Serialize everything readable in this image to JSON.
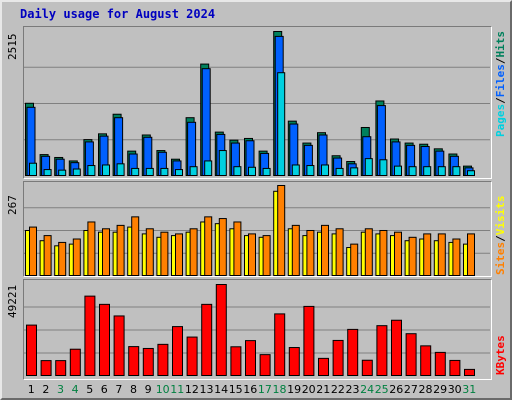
{
  "title": "Daily usage for August 2024",
  "colors": {
    "pages": "#00d0e0",
    "files": "#0060ff",
    "hits": "#00805c",
    "sites": "#ff8000",
    "visits": "#ffff00",
    "kbytes": "#ff0000",
    "weekend_label": "#008040",
    "weekday_label": "#000000",
    "title": "#0000c0"
  },
  "right_labels": {
    "top": [
      "Pages",
      "Files",
      "Hits"
    ],
    "middle": [
      "Sites",
      "Visits"
    ],
    "bottom": [
      "KBytes"
    ]
  },
  "separator": "/",
  "chart_data": [
    {
      "type": "bar",
      "title": "Daily usage for August 2024",
      "categories": [
        "1",
        "2",
        "3",
        "4",
        "5",
        "6",
        "7",
        "8",
        "9",
        "10",
        "11",
        "12",
        "13",
        "14",
        "15",
        "16",
        "17",
        "18",
        "19",
        "20",
        "21",
        "22",
        "23",
        "24",
        "25",
        "26",
        "27",
        "28",
        "29",
        "30",
        "31"
      ],
      "weekend_days": [
        "3",
        "4",
        "10",
        "11",
        "17",
        "18",
        "24",
        "25",
        "31"
      ],
      "ymax_label": "2515",
      "ylim": [
        0,
        2515
      ],
      "series": [
        {
          "name": "Hits",
          "values": [
            1270,
            380,
            330,
            270,
            640,
            740,
            1080,
            440,
            720,
            450,
            300,
            1020,
            1950,
            770,
            630,
            660,
            440,
            2515,
            960,
            580,
            760,
            360,
            260,
            850,
            1310,
            650,
            580,
            560,
            480,
            390,
            180
          ]
        },
        {
          "name": "Files",
          "values": [
            1200,
            350,
            300,
            240,
            600,
            700,
            1020,
            390,
            680,
            420,
            270,
            940,
            1870,
            730,
            580,
            620,
            400,
            2430,
            910,
            540,
            720,
            320,
            220,
            690,
            1230,
            600,
            540,
            520,
            440,
            350,
            150
          ]
        },
        {
          "name": "Pages",
          "values": [
            230,
            120,
            110,
            130,
            190,
            200,
            220,
            140,
            140,
            140,
            120,
            170,
            270,
            450,
            170,
            160,
            140,
            1800,
            200,
            190,
            200,
            140,
            150,
            310,
            290,
            180,
            170,
            170,
            170,
            170,
            100
          ]
        }
      ]
    },
    {
      "type": "bar",
      "categories": [
        "1",
        "2",
        "3",
        "4",
        "5",
        "6",
        "7",
        "8",
        "9",
        "10",
        "11",
        "12",
        "13",
        "14",
        "15",
        "16",
        "17",
        "18",
        "19",
        "20",
        "21",
        "22",
        "23",
        "24",
        "25",
        "26",
        "27",
        "28",
        "29",
        "30",
        "31"
      ],
      "ymax_label": "267",
      "ylim": [
        0,
        267
      ],
      "series": [
        {
          "name": "Visits",
          "values": [
            135,
            105,
            90,
            95,
            135,
            130,
            130,
            145,
            125,
            115,
            120,
            130,
            160,
            155,
            140,
            120,
            115,
            250,
            140,
            120,
            130,
            125,
            85,
            130,
            125,
            120,
            105,
            110,
            105,
            100,
            95
          ]
        },
        {
          "name": "Sites",
          "values": [
            145,
            120,
            100,
            110,
            160,
            140,
            150,
            175,
            140,
            130,
            125,
            140,
            175,
            170,
            160,
            125,
            120,
            267,
            150,
            135,
            150,
            140,
            95,
            140,
            135,
            130,
            115,
            125,
            125,
            110,
            125
          ]
        }
      ]
    },
    {
      "type": "bar",
      "categories": [
        "1",
        "2",
        "3",
        "4",
        "5",
        "6",
        "7",
        "8",
        "9",
        "10",
        "11",
        "12",
        "13",
        "14",
        "15",
        "16",
        "17",
        "18",
        "19",
        "20",
        "21",
        "22",
        "23",
        "24",
        "25",
        "26",
        "27",
        "28",
        "29",
        "30",
        "31"
      ],
      "ymax_label": "49221",
      "ylim": [
        0,
        49221
      ],
      "series": [
        {
          "name": "KBytes",
          "values": [
            27500,
            8500,
            8500,
            14600,
            43000,
            38600,
            32400,
            16000,
            15000,
            17200,
            26700,
            21100,
            38600,
            49221,
            15900,
            19200,
            11700,
            33500,
            15500,
            37500,
            9700,
            19300,
            25200,
            8700,
            27200,
            30100,
            22900,
            16400,
            12900,
            8600,
            3800
          ]
        }
      ]
    }
  ]
}
